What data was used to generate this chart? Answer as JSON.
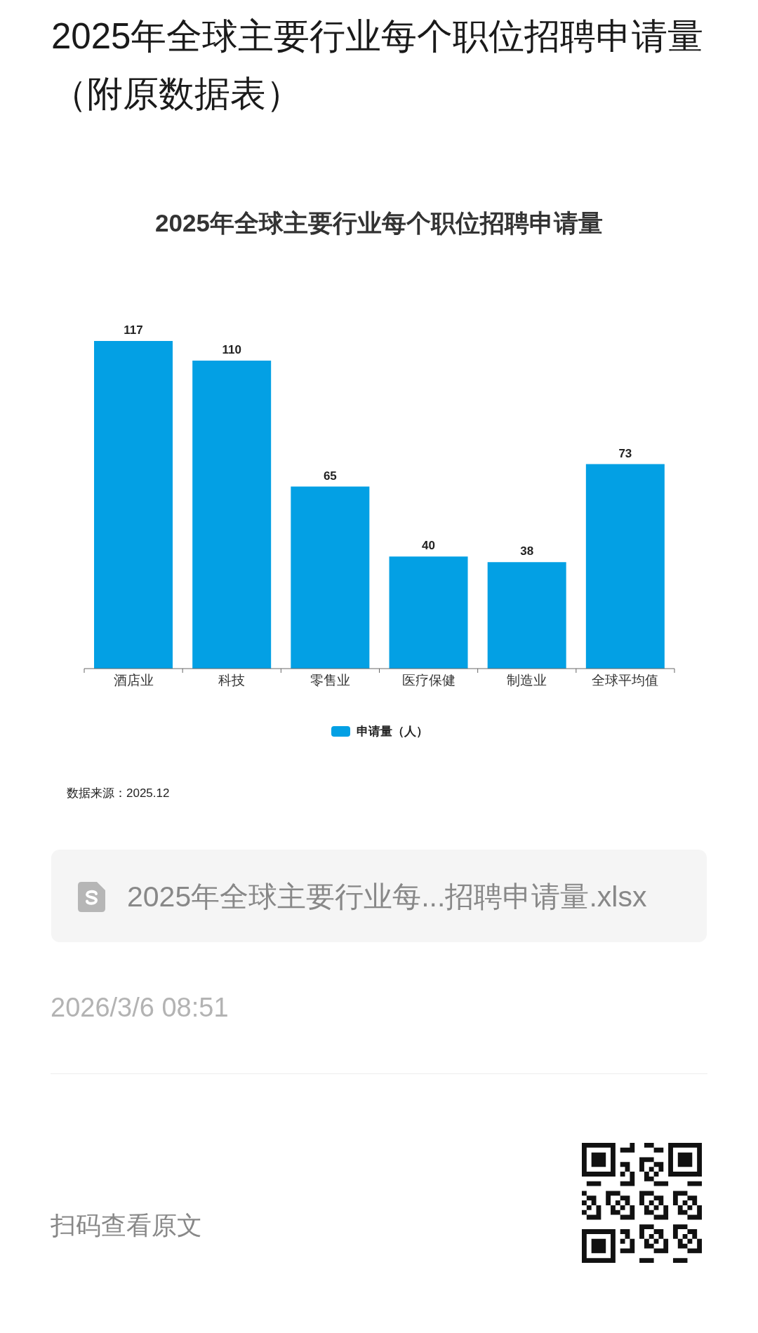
{
  "chart_data": {
    "type": "bar",
    "title": "2025年全球主要行业每个职位招聘申请量（附原数据表）",
    "subtitle": "2025年全球主要行业每个职位招聘申请量",
    "categories": [
      "酒店业",
      "科技",
      "零售业",
      "医疗保健",
      "制造业",
      "全球平均值"
    ],
    "series": [
      {
        "name": "申请量（人）",
        "color": "#03a0e4",
        "values": [
          117,
          110,
          65,
          40,
          38,
          73
        ]
      }
    ],
    "data_labels": true,
    "legend": "bottom",
    "tick_labels": "x",
    "annotations": [
      "数据来源：2025.12",
      "2025年全球主要行业每...招聘申请量.xlsx",
      "2026/3/6 08:51",
      "扫码查看原文"
    ]
  }
}
